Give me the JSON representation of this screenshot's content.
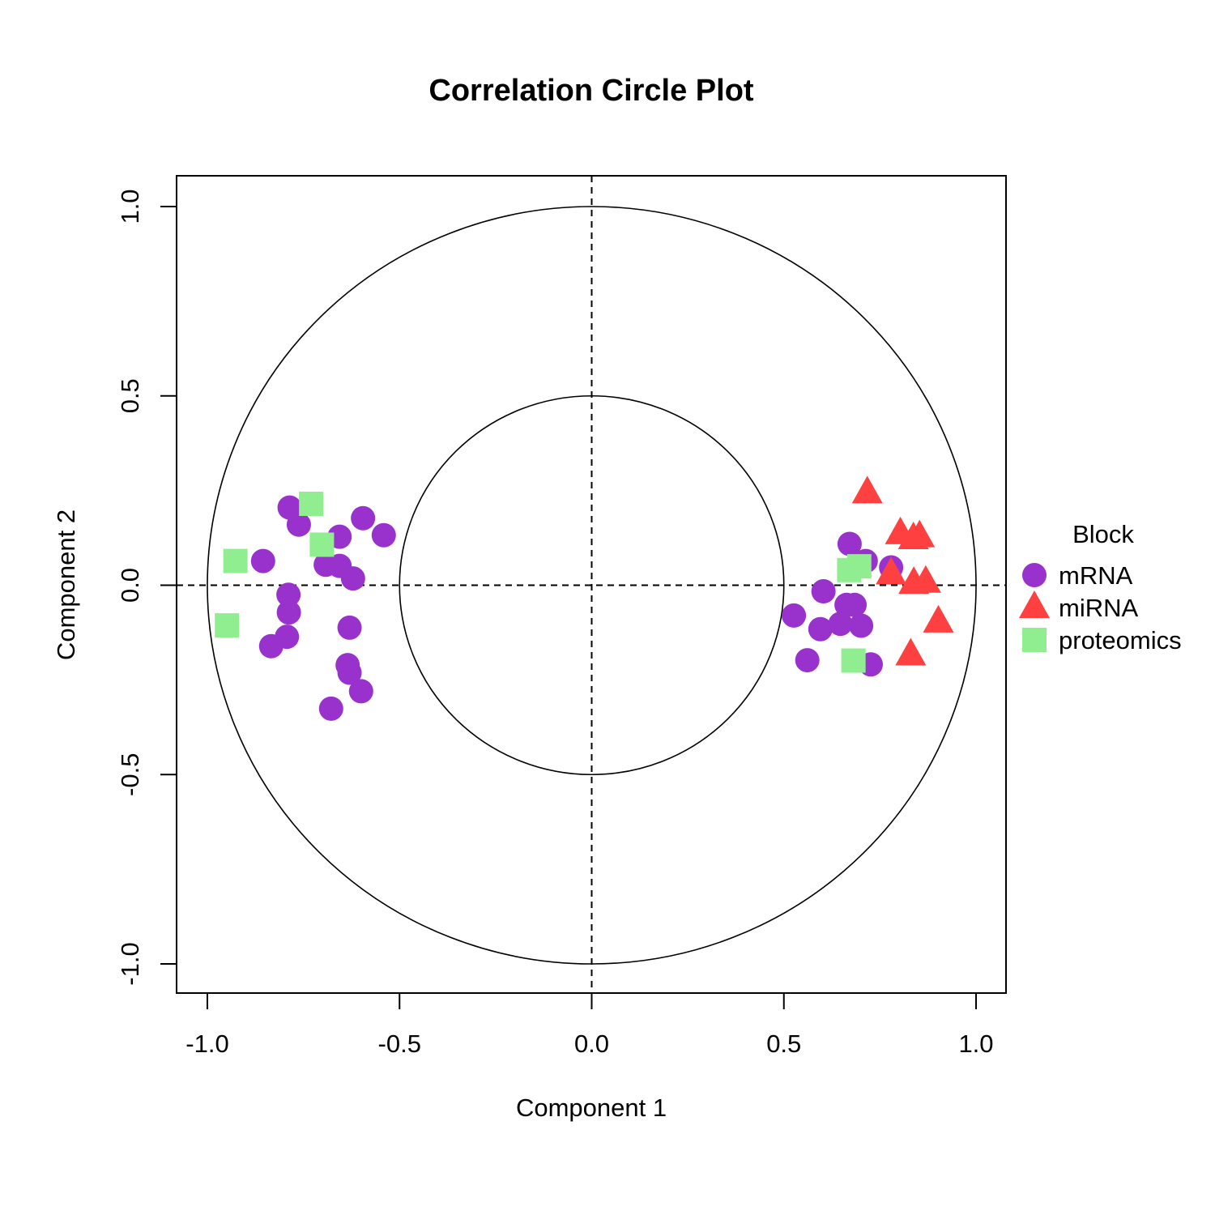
{
  "chart_data": {
    "type": "scatter",
    "title": "Correlation Circle Plot",
    "xlabel": "Component  1",
    "ylabel": "Component  2",
    "xlim": [
      -1.08,
      1.08
    ],
    "ylim": [
      -1.08,
      1.08
    ],
    "xticks": [
      "-1.0",
      "-0.5",
      "0.0",
      "0.5",
      "1.0"
    ],
    "yticks": [
      "-1.0",
      "-0.5",
      "0.0",
      "0.5",
      "1.0"
    ],
    "tick_values": [
      -1,
      -0.5,
      0,
      0.5,
      1
    ],
    "circles": [
      1.0,
      0.5
    ],
    "reference_lines": "dashed at x=0 and y=0",
    "grid": false,
    "legend": {
      "title": "Block",
      "placement": "right"
    },
    "series": [
      {
        "name": "mRNA",
        "marker": "circle",
        "color": "#9932CC",
        "x": [
          -0.786,
          -0.762,
          -0.595,
          -0.541,
          -0.656,
          -0.855,
          -0.692,
          -0.656,
          -0.621,
          -0.789,
          -0.788,
          -0.793,
          -0.834,
          -0.63,
          -0.635,
          -0.63,
          -0.6,
          -0.678,
          0.671,
          0.713,
          0.779,
          0.603,
          0.663,
          0.684,
          0.526,
          0.595,
          0.647,
          0.701,
          0.561,
          0.726
        ],
        "y": [
          0.205,
          0.16,
          0.177,
          0.132,
          0.128,
          0.064,
          0.054,
          0.051,
          0.018,
          -0.025,
          -0.072,
          -0.136,
          -0.161,
          -0.112,
          -0.211,
          -0.231,
          -0.28,
          -0.326,
          0.109,
          0.064,
          0.047,
          -0.016,
          -0.052,
          -0.052,
          -0.08,
          -0.116,
          -0.102,
          -0.107,
          -0.198,
          -0.209
        ]
      },
      {
        "name": "miRNA",
        "marker": "triangle",
        "color": "#FF4040",
        "x": [
          0.717,
          0.803,
          0.837,
          0.853,
          0.779,
          0.838,
          0.869,
          0.902,
          0.83
        ],
        "y": [
          0.244,
          0.136,
          0.123,
          0.128,
          0.03,
          0.005,
          0.008,
          -0.097,
          -0.184
        ]
      },
      {
        "name": "proteomics",
        "marker": "square",
        "color": "#90EE90",
        "x": [
          -0.73,
          -0.702,
          -0.927,
          -0.949,
          0.67,
          0.696,
          0.681
        ],
        "y": [
          0.215,
          0.107,
          0.064,
          -0.106,
          0.04,
          0.05,
          -0.199
        ]
      }
    ]
  }
}
